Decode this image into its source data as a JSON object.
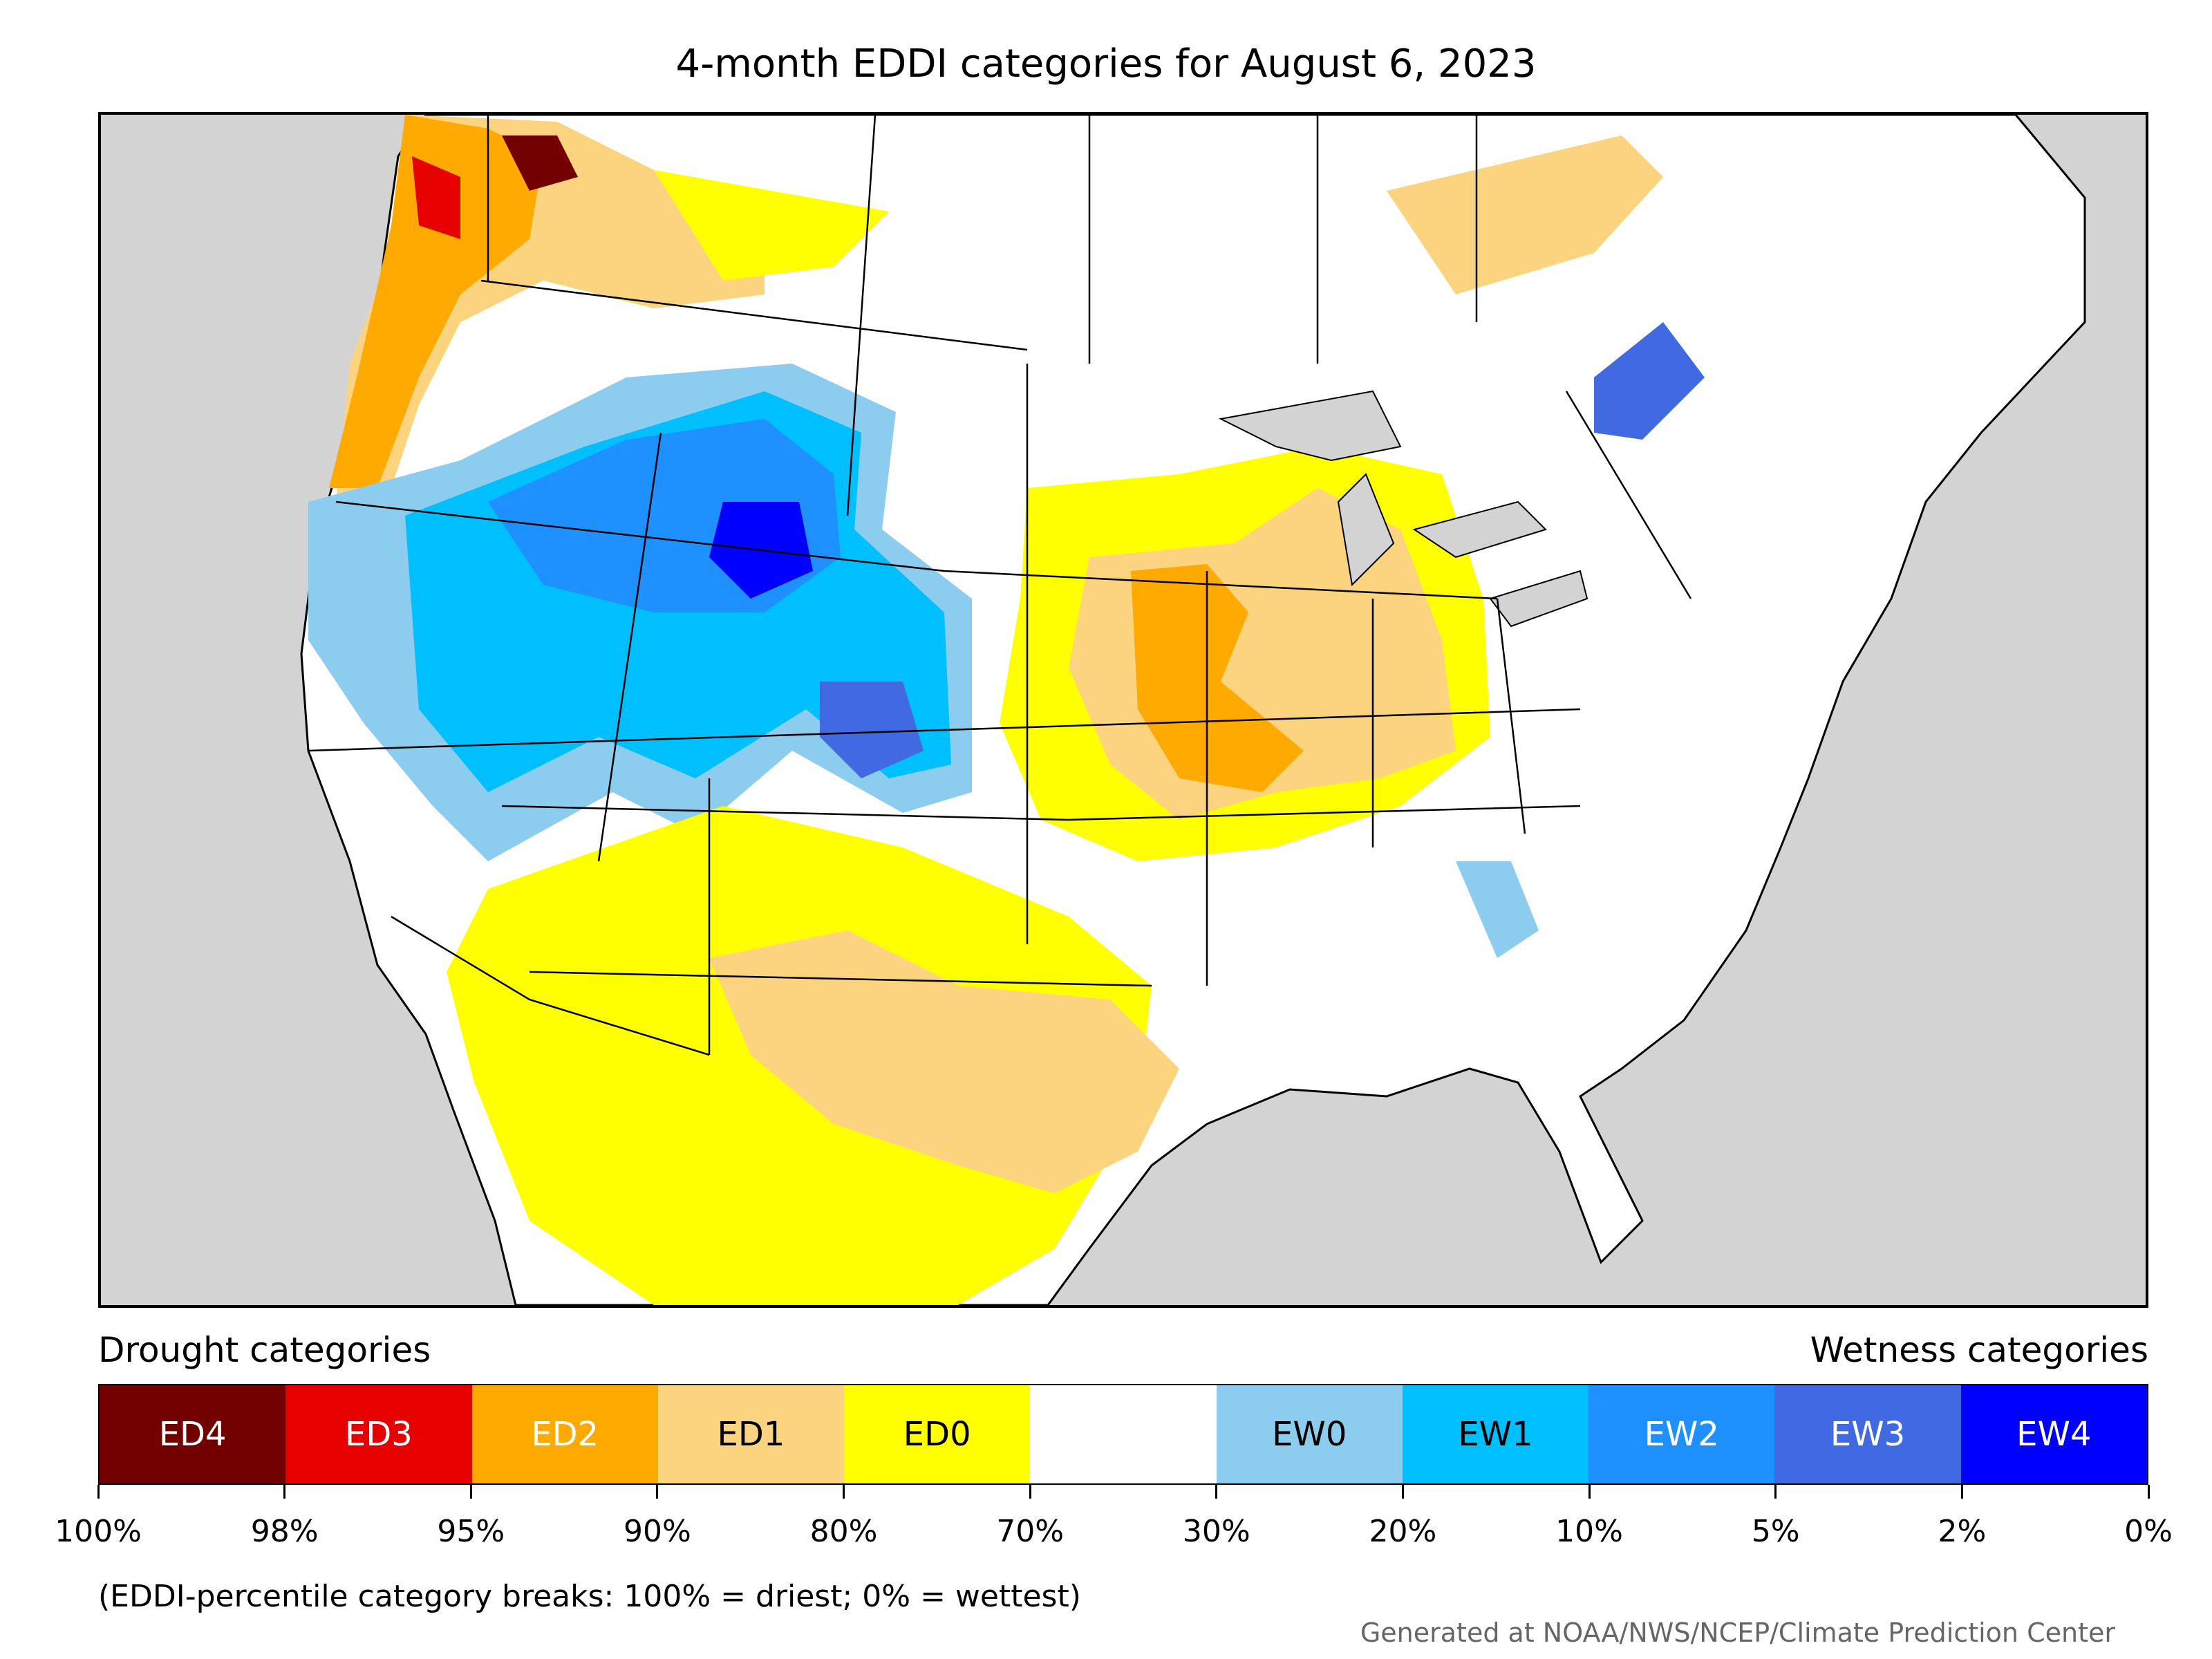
{
  "title": "4-month EDDI categories for August 6, 2023",
  "legend": {
    "drought_heading": "Drought categories",
    "wetness_heading": "Wetness categories",
    "categories": [
      {
        "label": "ED4",
        "color": "#730000",
        "text_color": "#ffffff"
      },
      {
        "label": "ED3",
        "color": "#e60000",
        "text_color": "#ffffff"
      },
      {
        "label": "ED2",
        "color": "#ffaa00",
        "text_color": "#ffffff"
      },
      {
        "label": "ED1",
        "color": "#fcd37f",
        "text_color": "#000000"
      },
      {
        "label": "ED0",
        "color": "#ffff00",
        "text_color": "#000000"
      },
      {
        "label": "",
        "color": "#ffffff",
        "text_color": "#000000"
      },
      {
        "label": "EW0",
        "color": "#8ccdef",
        "text_color": "#000000"
      },
      {
        "label": "EW1",
        "color": "#00bfff",
        "text_color": "#000000"
      },
      {
        "label": "EW2",
        "color": "#1e90ff",
        "text_color": "#ffffff"
      },
      {
        "label": "EW3",
        "color": "#4169e1",
        "text_color": "#ffffff"
      },
      {
        "label": "EW4",
        "color": "#0000ff",
        "text_color": "#ffffff"
      }
    ],
    "tick_labels": [
      "100%",
      "98%",
      "95%",
      "90%",
      "80%",
      "70%",
      "30%",
      "20%",
      "10%",
      "5%",
      "2%",
      "0%"
    ]
  },
  "note": "(EDDI-percentile category breaks: 100% = driest; 0% = wettest)",
  "credit": "Generated at NOAA/NWS/NCEP/Climate Prediction Center"
}
